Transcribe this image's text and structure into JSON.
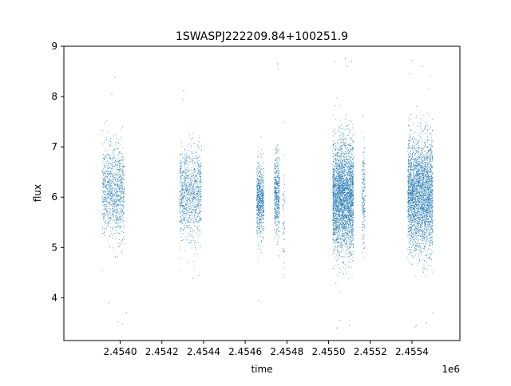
{
  "chart_data": {
    "type": "scatter",
    "title": "1SWASPJ222209.84+100251.9",
    "xlabel": "time",
    "ylabel": "flux",
    "x_offset_label": "1e6",
    "xlim": [
      2.45373,
      2.45563
    ],
    "ylim": [
      3.15,
      9.0
    ],
    "x_ticks": [
      2.454,
      2.4542,
      2.4544,
      2.4546,
      2.4548,
      2.455,
      2.4552,
      2.4554
    ],
    "x_tick_labels": [
      "2.4540",
      "2.4542",
      "2.4544",
      "2.4546",
      "2.4548",
      "2.4550",
      "2.4552",
      "2.4554"
    ],
    "y_ticks": [
      4,
      5,
      6,
      7,
      8,
      9
    ],
    "y_tick_labels": [
      "4",
      "5",
      "6",
      "7",
      "8",
      "9"
    ],
    "grid": false,
    "marker_color": "#1f77b4",
    "series": [
      {
        "clusters": [
          {
            "x_range": [
              2.453915,
              2.45402
            ],
            "y_center": 6.1,
            "y_spread": 0.45,
            "density": 1100,
            "outliers": [
              [
                2.453975,
                8.38
              ],
              [
                2.45399,
                3.52
              ],
              [
                2.45401,
                3.48
              ],
              [
                2.453945,
                3.9
              ],
              [
                2.45403,
                3.7
              ],
              [
                2.45396,
                8.05
              ]
            ]
          },
          {
            "x_range": [
              2.454285,
              2.45439
            ],
            "y_center": 6.05,
            "y_spread": 0.45,
            "density": 1100,
            "outliers": [
              [
                2.454305,
                8.12
              ],
              [
                2.4543,
                7.95
              ],
              [
                2.45435,
                4.38
              ],
              [
                2.45438,
                4.45
              ]
            ]
          },
          {
            "x_range": [
              2.454655,
              2.45469
            ],
            "y_center": 5.95,
            "y_spread": 0.35,
            "density": 700,
            "outliers": [
              [
                2.454665,
                3.95
              ],
              [
                2.454675,
                4.95
              ]
            ]
          },
          {
            "x_range": [
              2.45474,
              2.454765
            ],
            "y_center": 6.05,
            "y_spread": 0.4,
            "density": 500,
            "outliers": [
              [
                2.454755,
                8.65
              ],
              [
                2.45476,
                8.55
              ]
            ]
          },
          {
            "x_range": [
              2.45478,
              2.45479
            ],
            "y_center": 5.6,
            "y_spread": 0.5,
            "density": 60,
            "outliers": []
          },
          {
            "x_range": [
              2.45502,
              2.45512
            ],
            "y_center": 6.0,
            "y_spread": 0.55,
            "density": 3200,
            "outliers": [
              [
                2.45503,
                8.7
              ],
              [
                2.45508,
                8.75
              ],
              [
                2.45511,
                8.7
              ],
              [
                2.45504,
                3.4
              ],
              [
                2.4551,
                3.45
              ],
              [
                2.455055,
                3.55
              ],
              [
                2.45509,
                8.6
              ]
            ]
          },
          {
            "x_range": [
              2.45516,
              2.455175
            ],
            "y_center": 6.0,
            "y_spread": 0.5,
            "density": 200,
            "outliers": [
              [
                2.455165,
                7.62
              ],
              [
                2.45517,
                4.98
              ]
            ]
          },
          {
            "x_range": [
              2.45538,
              2.4555
            ],
            "y_center": 6.05,
            "y_spread": 0.55,
            "density": 3200,
            "outliers": [
              [
                2.4554,
                8.72
              ],
              [
                2.45545,
                8.6
              ],
              [
                2.45542,
                3.45
              ],
              [
                2.45547,
                3.5
              ],
              [
                2.4555,
                3.7
              ],
              [
                2.45539,
                8.45
              ]
            ]
          }
        ]
      }
    ]
  }
}
